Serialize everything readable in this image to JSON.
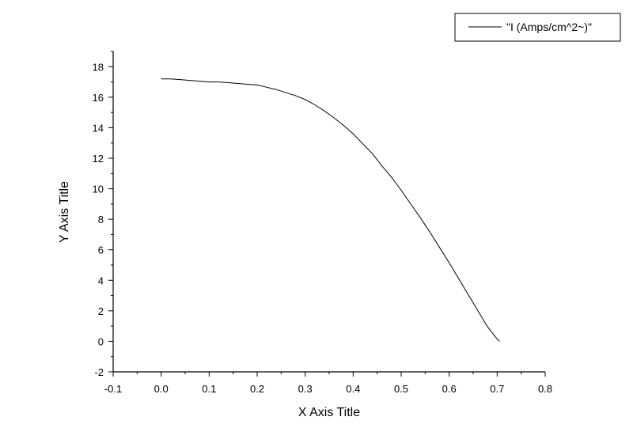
{
  "chart_data": {
    "type": "line",
    "title": "",
    "xlabel": "X Axis Title",
    "ylabel": "Y Axis Title",
    "xlim": [
      -0.1,
      0.8
    ],
    "ylim": [
      -2,
      19
    ],
    "xticks": [
      -0.1,
      0.0,
      0.1,
      0.2,
      0.3,
      0.4,
      0.5,
      0.6,
      0.7,
      0.8
    ],
    "xtick_labels": [
      "-0.1",
      "0.0",
      "0.1",
      "0.2",
      "0.3",
      "0.4",
      "0.5",
      "0.6",
      "0.7",
      "0.8"
    ],
    "yticks": [
      -2,
      0,
      2,
      4,
      6,
      8,
      10,
      12,
      14,
      16,
      18
    ],
    "ytick_labels": [
      "-2",
      "0",
      "2",
      "4",
      "6",
      "8",
      "10",
      "12",
      "14",
      "16",
      "18"
    ],
    "grid": false,
    "legend_position": "top-right",
    "line_color": "#000000",
    "series": [
      {
        "name": "\"I (Amps/cm^2~)\"",
        "x": [
          0.0,
          0.02,
          0.04,
          0.06,
          0.08,
          0.1,
          0.12,
          0.14,
          0.16,
          0.18,
          0.2,
          0.22,
          0.24,
          0.26,
          0.28,
          0.3,
          0.32,
          0.34,
          0.36,
          0.38,
          0.4,
          0.42,
          0.44,
          0.46,
          0.48,
          0.5,
          0.52,
          0.54,
          0.56,
          0.58,
          0.6,
          0.62,
          0.64,
          0.66,
          0.68,
          0.7,
          0.705
        ],
        "values": [
          17.2,
          17.2,
          17.15,
          17.1,
          17.05,
          17.0,
          17.0,
          16.95,
          16.9,
          16.85,
          16.8,
          16.65,
          16.5,
          16.3,
          16.1,
          15.85,
          15.5,
          15.1,
          14.65,
          14.15,
          13.6,
          12.95,
          12.3,
          11.5,
          10.75,
          9.9,
          9.0,
          8.1,
          7.15,
          6.15,
          5.15,
          4.1,
          3.05,
          2.0,
          0.95,
          0.15,
          0.0
        ]
      }
    ]
  }
}
